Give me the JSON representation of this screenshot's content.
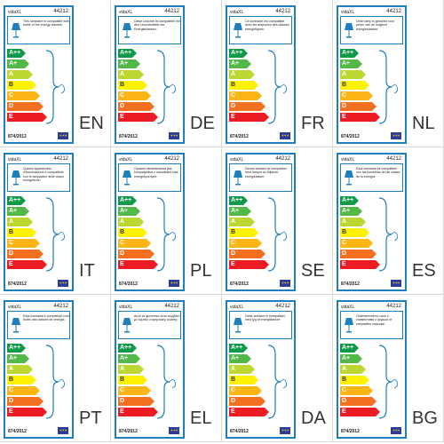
{
  "brand": "vidaXL",
  "product_code": "44212",
  "regulation": "874/2012",
  "labels": [
    {
      "lang": "EN",
      "text": "This luminaire is compatible with bulbs of the energy classes:"
    },
    {
      "lang": "DE",
      "text": "Diese Leuchte ist kompatibel mit den Leuchtmitteln der Energieklassen:"
    },
    {
      "lang": "FR",
      "text": "Ce luminaire est compatible avec les ampoules des classes énergétiques:"
    },
    {
      "lang": "NL",
      "text": "Deze lamp is geschikt voor peren van de volgend energieklassen:"
    },
    {
      "lang": "IT",
      "text": "Questo apparecchio d'illuminazione è compatibile con le lampadine delle classi energetiche:"
    },
    {
      "lang": "PL",
      "text": "Oprawa oświetleniowa jest kompatybilna z żarówkami klas energetycznych:"
    },
    {
      "lang": "SE",
      "text": "Denna armatur är kompatibel med lampor av följande energiklasser:"
    },
    {
      "lang": "ES",
      "text": "Esta luminaria es compatible con las bombillas de las clases de la energía:"
    },
    {
      "lang": "PT",
      "text": "Esta luminária é compatível com bulbs das classes de energia:"
    },
    {
      "lang": "EL",
      "text": "Αυτό το φωτιστικό είναι συμβατό με λάμπες ενεργειακής κλάσης:"
    },
    {
      "lang": "DA",
      "text": "Dette armatur er kompatibel med lyg af energiklasser:"
    },
    {
      "lang": "BG",
      "text": "Осветителното тяло е съвместимо с крушки от енергийни класове:"
    }
  ],
  "energy_classes": [
    {
      "label": "A++",
      "color": "#0f9a47"
    },
    {
      "label": "A+",
      "color": "#52b848"
    },
    {
      "label": "A",
      "color": "#bed630"
    },
    {
      "label": "B",
      "color": "#fff200"
    },
    {
      "label": "C",
      "color": "#fbb616"
    },
    {
      "label": "D",
      "color": "#f37021"
    },
    {
      "label": "E",
      "color": "#ed1c24"
    }
  ],
  "icons": {
    "lamp": "table-lamp-icon",
    "flag": "eu-flag-icon",
    "bracket": "curly-brace-icon"
  },
  "accent_color": "#1e7fbf"
}
